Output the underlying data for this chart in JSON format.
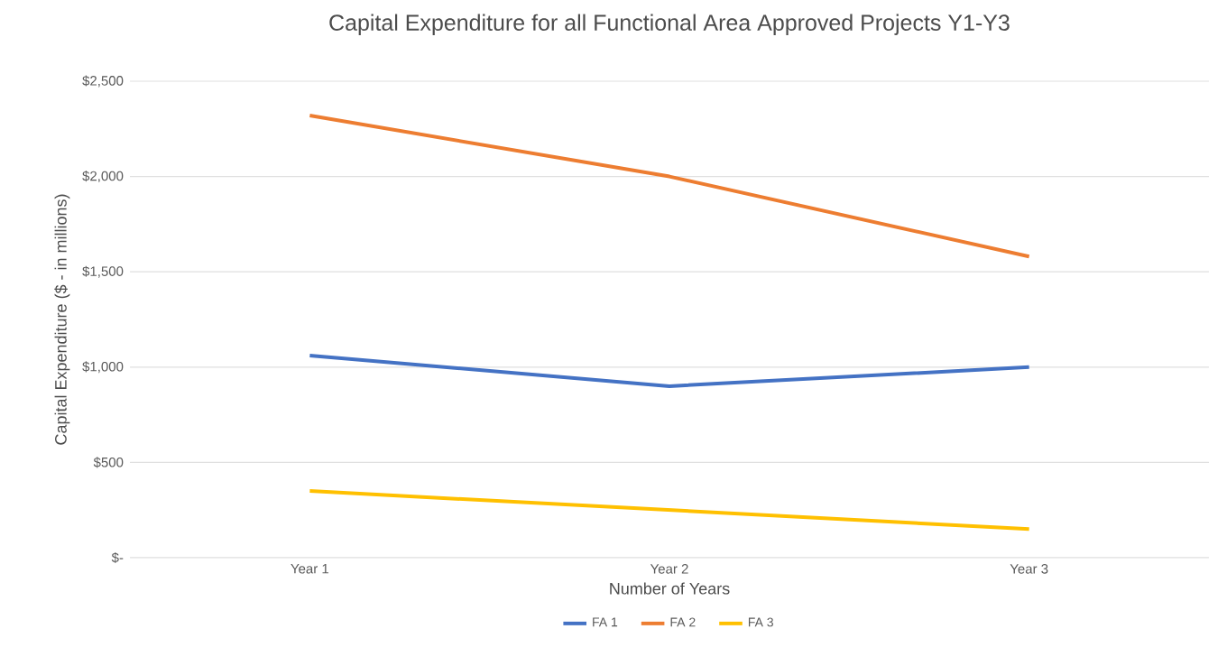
{
  "chart_data": {
    "type": "line",
    "title": "Capital Expenditure for all Functional Area Approved Projects Y1-Y3",
    "xlabel": "Number of Years",
    "ylabel": "Capital Expenditure ($ - in millions)",
    "categories": [
      "Year 1",
      "Year 2",
      "Year 3"
    ],
    "series": [
      {
        "name": "FA 1",
        "color": "#4472c4",
        "values": [
          1060,
          900,
          1000
        ]
      },
      {
        "name": "FA 2",
        "color": "#ed7d31",
        "values": [
          2320,
          2000,
          1580
        ]
      },
      {
        "name": "FA 3",
        "color": "#ffc000",
        "values": [
          350,
          250,
          150
        ]
      }
    ],
    "ylim": [
      0,
      2500
    ],
    "yticks": [
      {
        "value": 0,
        "label": "$-"
      },
      {
        "value": 500,
        "label": "$500"
      },
      {
        "value": 1000,
        "label": "$1,000"
      },
      {
        "value": 1500,
        "label": "$1,500"
      },
      {
        "value": 2000,
        "label": "$2,000"
      },
      {
        "value": 2500,
        "label": "$2,500"
      }
    ],
    "grid": "y",
    "legend": "bottom",
    "marker": "none",
    "line_style": "solid"
  }
}
